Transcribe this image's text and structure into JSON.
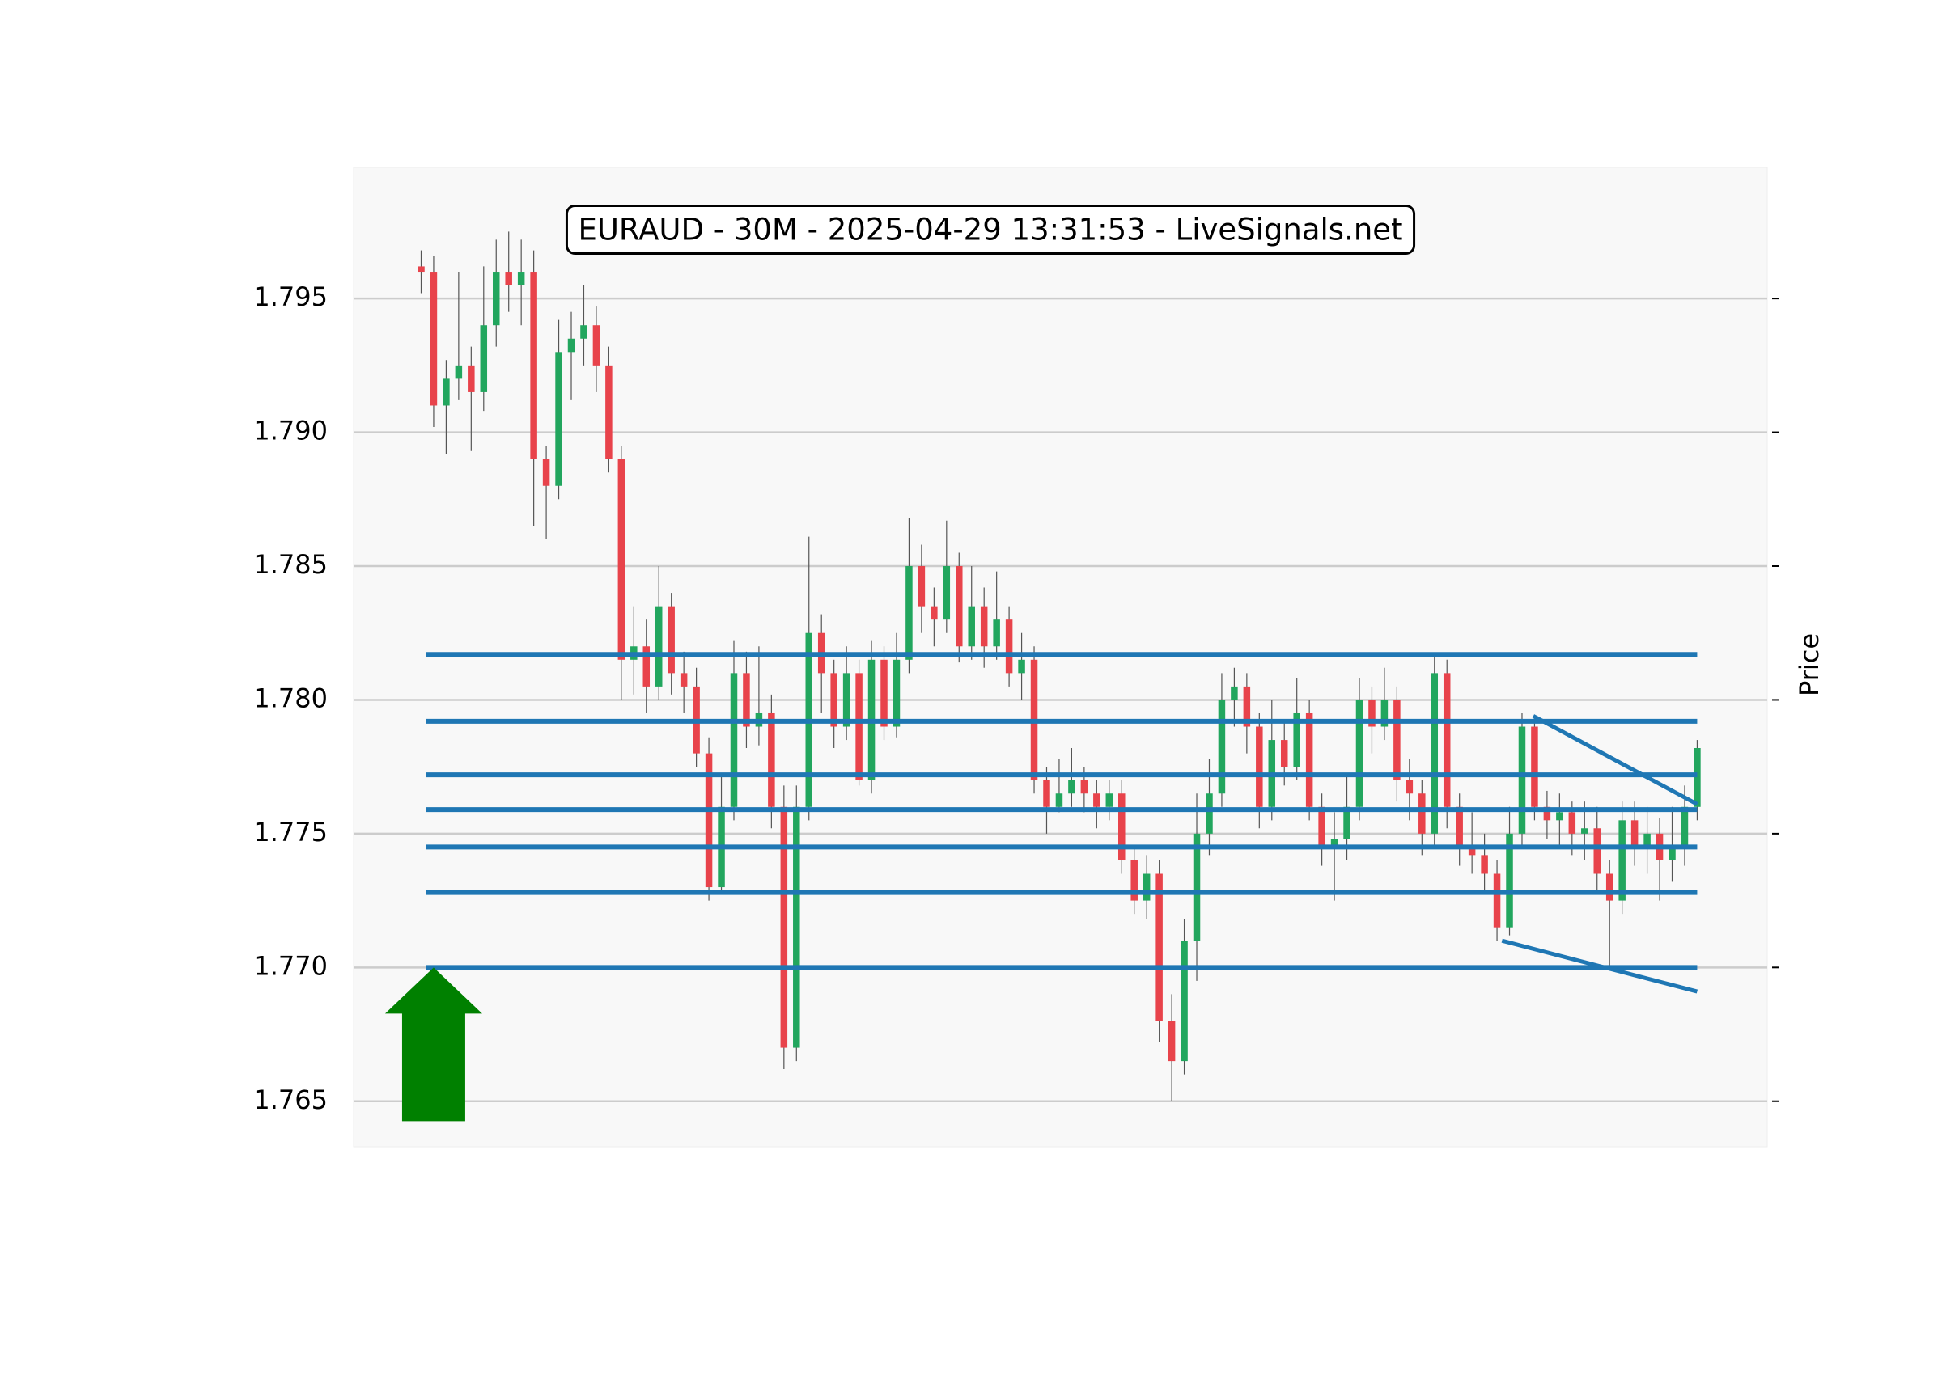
{
  "chart_data": {
    "type": "candlestick",
    "title": "EURAUD - 30M - 2025-04-29 13:31:53 - LiveSignals.net",
    "y_label": "Price",
    "xlim": [
      -5.4,
      107.6
    ],
    "ylim": [
      1.7633,
      1.7999
    ],
    "yticks": [
      1.765,
      {
        "value": 1.77,
        "label": "1.770"
      },
      1.775,
      {
        "value": 1.78,
        "label": "1.780"
      },
      1.785,
      {
        "value": 1.79,
        "label": "1.790"
      },
      1.795
    ],
    "grid": true,
    "up_color": "#22a65e",
    "down_color": "#e8434b",
    "open": [
      1.7962,
      1.796,
      1.791,
      1.792,
      1.7925,
      1.7915,
      1.794,
      1.796,
      1.7955,
      1.796,
      1.789,
      1.788,
      1.793,
      1.7935,
      1.794,
      1.7925,
      1.789,
      1.7815,
      1.782,
      1.7805,
      1.7835,
      1.781,
      1.7805,
      1.778,
      1.773,
      1.776,
      1.781,
      1.779,
      1.7795,
      1.776,
      1.767,
      1.776,
      1.7825,
      1.781,
      1.779,
      1.781,
      1.777,
      1.7815,
      1.779,
      1.7815,
      1.785,
      1.7835,
      1.783,
      1.785,
      1.782,
      1.7835,
      1.782,
      1.783,
      1.781,
      1.7815,
      1.777,
      1.776,
      1.7765,
      1.777,
      1.7765,
      1.776,
      1.7765,
      1.774,
      1.7725,
      1.7735,
      1.768,
      1.7665,
      1.771,
      1.775,
      1.7765,
      1.78,
      1.7805,
      1.779,
      1.776,
      1.7785,
      1.7775,
      1.7795,
      1.776,
      1.7745,
      1.7748,
      1.776,
      1.78,
      1.779,
      1.78,
      1.777,
      1.7765,
      1.775,
      1.781,
      1.776,
      1.7745,
      1.7742,
      1.7735,
      1.7715,
      1.775,
      1.779,
      1.776,
      1.7755,
      1.7758,
      1.775,
      1.7752,
      1.7735,
      1.7725,
      1.7755,
      1.7745,
      1.775,
      1.774,
      1.7745,
      1.776
    ],
    "high": [
      1.7968,
      1.7966,
      1.7927,
      1.796,
      1.7932,
      1.7962,
      1.7972,
      1.7975,
      1.7972,
      1.7968,
      1.7895,
      1.7942,
      1.7945,
      1.7955,
      1.7947,
      1.7932,
      1.7895,
      1.7835,
      1.783,
      1.785,
      1.784,
      1.7818,
      1.7812,
      1.7786,
      1.7772,
      1.7822,
      1.7818,
      1.782,
      1.7802,
      1.7768,
      1.7768,
      1.7861,
      1.7832,
      1.7815,
      1.782,
      1.7815,
      1.7822,
      1.782,
      1.7825,
      1.7868,
      1.7858,
      1.7842,
      1.7867,
      1.7855,
      1.785,
      1.7842,
      1.7848,
      1.7835,
      1.7825,
      1.782,
      1.7775,
      1.7778,
      1.7782,
      1.7775,
      1.777,
      1.777,
      1.777,
      1.7745,
      1.7742,
      1.774,
      1.769,
      1.7718,
      1.7765,
      1.7778,
      1.781,
      1.7812,
      1.781,
      1.7795,
      1.78,
      1.7792,
      1.7808,
      1.78,
      1.7765,
      1.7758,
      1.7772,
      1.7808,
      1.7805,
      1.7812,
      1.7805,
      1.7778,
      1.777,
      1.7817,
      1.7815,
      1.7765,
      1.7758,
      1.775,
      1.774,
      1.776,
      1.7795,
      1.7793,
      1.7766,
      1.7765,
      1.7762,
      1.7762,
      1.776,
      1.774,
      1.7762,
      1.7762,
      1.776,
      1.7756,
      1.776,
      1.7768,
      1.7785
    ],
    "low": [
      1.7952,
      1.7902,
      1.7892,
      1.7912,
      1.7893,
      1.7908,
      1.7932,
      1.7945,
      1.794,
      1.7865,
      1.786,
      1.7875,
      1.7912,
      1.7925,
      1.7915,
      1.7885,
      1.78,
      1.7802,
      1.7795,
      1.78,
      1.7802,
      1.7795,
      1.7775,
      1.7725,
      1.7728,
      1.7755,
      1.7782,
      1.7783,
      1.7752,
      1.7662,
      1.7665,
      1.7755,
      1.7795,
      1.7782,
      1.7785,
      1.7768,
      1.7765,
      1.7785,
      1.7786,
      1.781,
      1.7825,
      1.782,
      1.7825,
      1.7814,
      1.7815,
      1.7812,
      1.7815,
      1.7805,
      1.78,
      1.7765,
      1.775,
      1.7758,
      1.776,
      1.7758,
      1.7752,
      1.7755,
      1.7735,
      1.772,
      1.7718,
      1.7672,
      1.765,
      1.766,
      1.7695,
      1.7742,
      1.776,
      1.779,
      1.778,
      1.7752,
      1.7755,
      1.7768,
      1.777,
      1.7755,
      1.7738,
      1.7725,
      1.774,
      1.7755,
      1.778,
      1.7785,
      1.7762,
      1.7755,
      1.7742,
      1.7745,
      1.7752,
      1.7738,
      1.7735,
      1.7728,
      1.771,
      1.7712,
      1.7745,
      1.7755,
      1.7748,
      1.7745,
      1.7742,
      1.774,
      1.7728,
      1.77,
      1.772,
      1.7738,
      1.7735,
      1.7725,
      1.7732,
      1.7738,
      1.7755
    ],
    "close": [
      1.796,
      1.791,
      1.792,
      1.7925,
      1.7915,
      1.794,
      1.796,
      1.7955,
      1.796,
      1.789,
      1.788,
      1.793,
      1.7935,
      1.794,
      1.7925,
      1.789,
      1.7815,
      1.782,
      1.7805,
      1.7835,
      1.781,
      1.7805,
      1.778,
      1.773,
      1.776,
      1.781,
      1.779,
      1.7795,
      1.776,
      1.767,
      1.776,
      1.7825,
      1.781,
      1.779,
      1.781,
      1.777,
      1.7815,
      1.779,
      1.7815,
      1.785,
      1.7835,
      1.783,
      1.785,
      1.782,
      1.7835,
      1.782,
      1.783,
      1.781,
      1.7815,
      1.777,
      1.776,
      1.7765,
      1.777,
      1.7765,
      1.776,
      1.7765,
      1.774,
      1.7725,
      1.7735,
      1.768,
      1.7665,
      1.771,
      1.775,
      1.7765,
      1.78,
      1.7805,
      1.779,
      1.776,
      1.7785,
      1.7775,
      1.7795,
      1.776,
      1.7745,
      1.7748,
      1.776,
      1.78,
      1.779,
      1.78,
      1.777,
      1.7765,
      1.775,
      1.781,
      1.776,
      1.7745,
      1.7742,
      1.7735,
      1.7715,
      1.775,
      1.779,
      1.776,
      1.7755,
      1.7758,
      1.775,
      1.7752,
      1.7735,
      1.7725,
      1.7755,
      1.7745,
      1.775,
      1.774,
      1.7745,
      1.776,
      1.7782
    ],
    "levels": [
      1.7817,
      1.7792,
      1.7772,
      1.7759,
      1.7745,
      1.7728,
      1.77
    ],
    "line_color": "#1f77b4",
    "trendlines": [
      {
        "x": [
          88.9,
          102
        ],
        "y": [
          1.7794,
          1.7761
        ]
      },
      {
        "x": [
          86.4,
          102
        ],
        "y": [
          1.771,
          1.7691
        ]
      }
    ],
    "signal": {
      "price": 1.77,
      "color": "#008000"
    }
  }
}
